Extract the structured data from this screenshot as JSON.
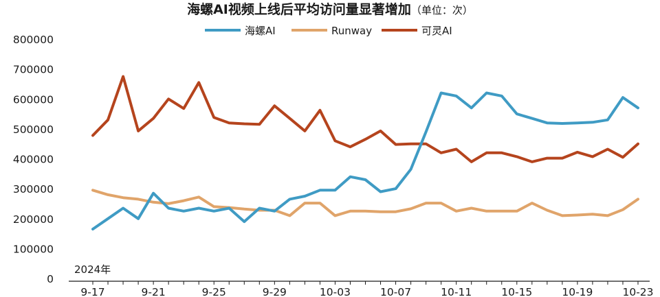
{
  "chart_data": {
    "type": "line",
    "title": "海螺AI视频上线后平均访问量显著增加",
    "unit_note": "（单位：次）",
    "year_label": "2024年",
    "colors": {
      "海螺AI": "#3f9bc4",
      "Runway": "#e0a46a",
      "可灵AI": "#b5441d"
    },
    "legend_position": "top",
    "grid": false,
    "ylim": [
      0,
      800000
    ],
    "yticks": [
      "0",
      "100000",
      "200000",
      "300000",
      "400000",
      "500000",
      "600000",
      "700000",
      "800000"
    ],
    "x_tick_labels": [
      {
        "index": 0,
        "label": "9-17"
      },
      {
        "index": 4,
        "label": "9-21"
      },
      {
        "index": 8,
        "label": "9-25"
      },
      {
        "index": 12,
        "label": "9-29"
      },
      {
        "index": 16,
        "label": "10-03"
      },
      {
        "index": 20,
        "label": "10-07"
      },
      {
        "index": 24,
        "label": "10-11"
      },
      {
        "index": 28,
        "label": "10-15"
      },
      {
        "index": 32,
        "label": "10-19"
      },
      {
        "index": 36,
        "label": "10-23"
      }
    ],
    "x": [
      "9-17",
      "9-18",
      "9-19",
      "9-20",
      "9-21",
      "9-22",
      "9-23",
      "9-24",
      "9-25",
      "9-26",
      "9-27",
      "9-28",
      "9-29",
      "9-30",
      "10-01",
      "10-02",
      "10-03",
      "10-04",
      "10-05",
      "10-06",
      "10-07",
      "10-08",
      "10-09",
      "10-10",
      "10-11",
      "10-12",
      "10-13",
      "10-14",
      "10-15",
      "10-16",
      "10-17",
      "10-18",
      "10-19",
      "10-20",
      "10-21",
      "10-22",
      "10-23"
    ],
    "series": [
      {
        "name": "海螺AI",
        "values": [
          165000,
          200000,
          235000,
          200000,
          285000,
          235000,
          225000,
          235000,
          225000,
          235000,
          190000,
          235000,
          225000,
          265000,
          275000,
          295000,
          295000,
          340000,
          330000,
          290000,
          300000,
          365000,
          490000,
          620000,
          610000,
          570000,
          620000,
          610000,
          550000,
          535000,
          520000,
          518000,
          520000,
          522000,
          530000,
          605000,
          570000
        ]
      },
      {
        "name": "Runway",
        "values": [
          295000,
          280000,
          270000,
          265000,
          255000,
          250000,
          260000,
          272000,
          240000,
          237000,
          232000,
          228000,
          228000,
          210000,
          252000,
          252000,
          210000,
          225000,
          225000,
          223000,
          223000,
          233000,
          252000,
          252000,
          225000,
          235000,
          225000,
          225000,
          225000,
          252000,
          228000,
          210000,
          212000,
          215000,
          210000,
          230000,
          265000
        ]
      },
      {
        "name": "可灵AI",
        "values": [
          478000,
          530000,
          675000,
          493000,
          535000,
          600000,
          568000,
          655000,
          538000,
          520000,
          517000,
          515000,
          577000,
          535000,
          493000,
          562000,
          460000,
          440000,
          465000,
          493000,
          448000,
          450000,
          450000,
          420000,
          432000,
          390000,
          420000,
          420000,
          407000,
          390000,
          402000,
          402000,
          422000,
          407000,
          432000,
          405000,
          450000
        ]
      }
    ]
  }
}
